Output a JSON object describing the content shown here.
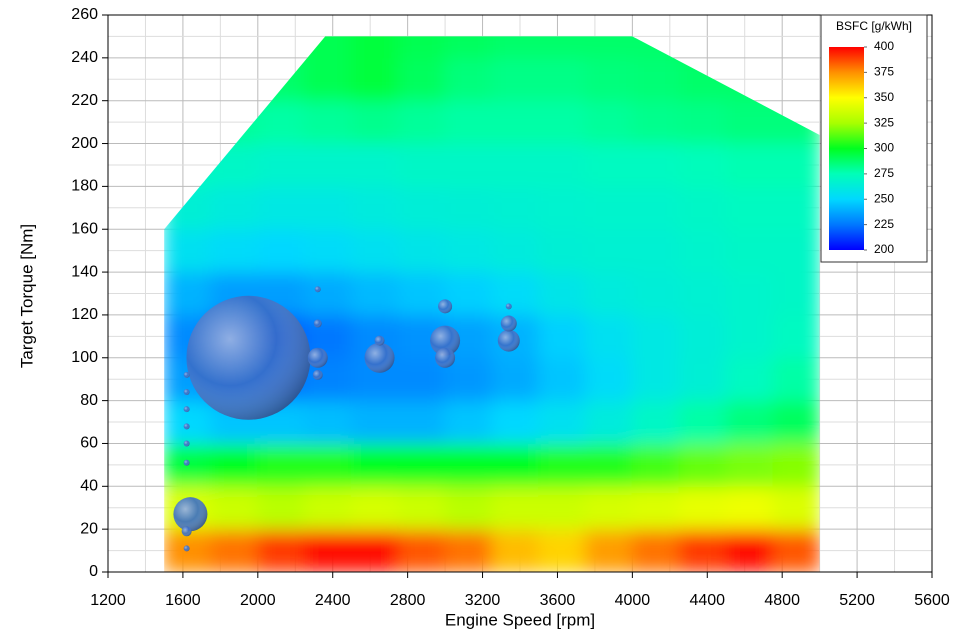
{
  "chart_data": {
    "type": "contour",
    "xlabel": "Engine Speed [rpm]",
    "ylabel": "Target Torque [Nm]",
    "xlim": [
      1200,
      5600
    ],
    "ylim": [
      0,
      260
    ],
    "xticks": [
      1200,
      1600,
      2000,
      2400,
      2800,
      3200,
      3600,
      4000,
      4400,
      4800,
      5200,
      5600
    ],
    "yticks": [
      0,
      20,
      40,
      60,
      80,
      100,
      120,
      140,
      160,
      180,
      200,
      220,
      240,
      260
    ],
    "grid": true,
    "x": [
      1625,
      1875,
      2125,
      2375,
      2625,
      2875,
      3125,
      3375,
      3625,
      3875,
      4125,
      4375,
      4625,
      4875
    ],
    "y": [
      10,
      30,
      50,
      70,
      90,
      110,
      130,
      150,
      170,
      190,
      210,
      230,
      250
    ],
    "z": [
      [
        375,
        380,
        390,
        398,
        398,
        385,
        380,
        365,
        360,
        372,
        380,
        390,
        398,
        385
      ],
      [
        340,
        335,
        330,
        335,
        338,
        335,
        330,
        335,
        335,
        338,
        340,
        343,
        345,
        340
      ],
      [
        295,
        300,
        305,
        305,
        300,
        300,
        300,
        300,
        305,
        305,
        310,
        315,
        318,
        320
      ],
      [
        250,
        245,
        245,
        243,
        240,
        240,
        245,
        250,
        255,
        262,
        270,
        278,
        285,
        290
      ],
      [
        235,
        228,
        225,
        228,
        230,
        230,
        233,
        238,
        245,
        252,
        260,
        265,
        272,
        278
      ],
      [
        230,
        222,
        220,
        225,
        230,
        232,
        236,
        240,
        248,
        255,
        260,
        264,
        268,
        272
      ],
      [
        240,
        235,
        235,
        238,
        242,
        245,
        248,
        252,
        258,
        262,
        264,
        266,
        268,
        270
      ],
      [
        255,
        252,
        250,
        252,
        255,
        258,
        260,
        262,
        265,
        266,
        266,
        268,
        270,
        270
      ],
      [
        265,
        262,
        260,
        260,
        262,
        264,
        265,
        266,
        267,
        268,
        268,
        270,
        272,
        272
      ],
      [
        272,
        270,
        268,
        268,
        268,
        270,
        270,
        270,
        270,
        272,
        272,
        274,
        276,
        276
      ],
      [
        280,
        280,
        278,
        280,
        282,
        280,
        278,
        278,
        278,
        280,
        282,
        283,
        285,
        285
      ],
      [
        285,
        285,
        288,
        292,
        295,
        290,
        285,
        283,
        283,
        285,
        286,
        288,
        288,
        288
      ],
      [
        288,
        288,
        290,
        292,
        295,
        292,
        290,
        288,
        288,
        288,
        288,
        290,
        290,
        290
      ]
    ],
    "boundary": {
      "x": [
        1500,
        1500,
        2360,
        4000,
        5000,
        5000
      ],
      "y": [
        0,
        160,
        250,
        250,
        204,
        0
      ]
    },
    "colorscale": [
      [
        200,
        "#0000ff"
      ],
      [
        225,
        "#0078ff"
      ],
      [
        250,
        "#00d8ff"
      ],
      [
        275,
        "#00ffb8"
      ],
      [
        300,
        "#00ff20"
      ],
      [
        325,
        "#a8ff00"
      ],
      [
        350,
        "#ffff00"
      ],
      [
        375,
        "#ff9000"
      ],
      [
        400,
        "#ff0000"
      ]
    ],
    "colorbar": {
      "title": "BSFC [g/kWh]",
      "ticks": [
        400,
        375,
        350,
        325,
        300,
        275,
        250,
        225,
        200
      ]
    },
    "bubbles": {
      "color": "#3a6ec8",
      "x": [
        1950,
        1640,
        2320,
        2650,
        3000,
        3000,
        3000,
        3340,
        3340,
        3340,
        2650,
        2320,
        2320,
        2320,
        1620,
        1620,
        1620,
        1620,
        1620,
        1620,
        1620,
        1620
      ],
      "y": [
        100,
        27,
        100,
        100,
        108,
        100,
        124,
        108,
        116,
        124,
        108,
        92,
        116,
        132,
        92,
        84,
        76,
        68,
        60,
        51,
        19,
        11
      ],
      "sizes": [
        62,
        17,
        10,
        15,
        15,
        10,
        7,
        11,
        8,
        3,
        5,
        5,
        4,
        3,
        3,
        3,
        3,
        3,
        3,
        3,
        5,
        3
      ]
    }
  }
}
